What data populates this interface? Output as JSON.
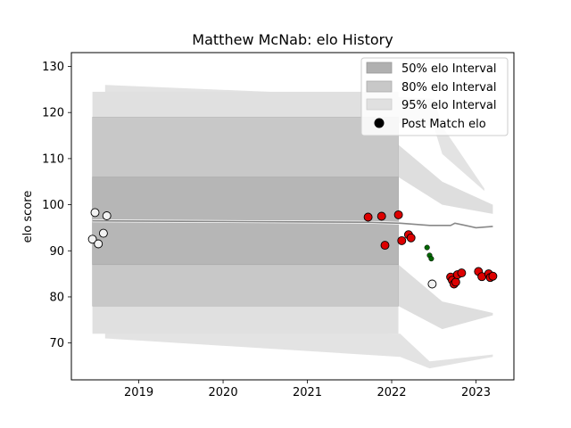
{
  "chart_data": {
    "type": "scatter",
    "title": "Matthew McNab: elo History",
    "xlabel": "",
    "ylabel": "elo score",
    "xlim": [
      2018.2,
      2023.45
    ],
    "ylim": [
      62,
      133
    ],
    "x_ticks": [
      2019,
      2020,
      2021,
      2022,
      2023
    ],
    "y_ticks": [
      70,
      80,
      90,
      100,
      110,
      120,
      130
    ],
    "grid": false,
    "legend_position": "top-right",
    "legend": [
      {
        "label": "50% elo Interval",
        "kind": "band",
        "color": "#b0b0b0"
      },
      {
        "label": "80% elo Interval",
        "kind": "band",
        "color": "#c8c8c8"
      },
      {
        "label": "95% elo Interval",
        "kind": "band",
        "color": "#e0e0e0"
      },
      {
        "label": "Post Match elo",
        "kind": "marker",
        "color": "#000000"
      }
    ],
    "colors": {
      "band50": "#b0b0b0",
      "band80": "#c8c8c8",
      "band95": "#e0e0e0",
      "loss": "#dd0000",
      "neutral": "#f2f2f2",
      "win": "#006600",
      "mean_line": "#888888"
    },
    "bands": {
      "block": {
        "x_range": [
          2018.45,
          2022.08
        ],
        "band50": [
          87,
          106
        ],
        "band80": [
          78,
          119
        ],
        "band95": [
          72,
          124.5
        ]
      },
      "upper_fan": [
        {
          "x": 2018.6,
          "y": 126,
          "y2": 124
        },
        {
          "x": 2022.5,
          "y": 123,
          "y2": 117
        },
        {
          "x": 2022.6,
          "y": 117,
          "y2": 111
        },
        {
          "x": 2023.1,
          "y": 103.5,
          "y2": 103
        }
      ],
      "lower_fan": [
        {
          "x": 2018.6,
          "y": 73,
          "y2": 71
        },
        {
          "x": 2022.1,
          "y": 72,
          "y2": 67
        },
        {
          "x": 2022.45,
          "y": 66,
          "y2": 64.5
        },
        {
          "x": 2023.2,
          "y": 67.5,
          "y2": 67
        }
      ],
      "upper_80_tail": [
        {
          "x": 2022.08,
          "y": 113,
          "y2": 106
        },
        {
          "x": 2022.6,
          "y": 105,
          "y2": 100
        },
        {
          "x": 2023.2,
          "y": 100,
          "y2": 98
        }
      ],
      "lower_80_tail": [
        {
          "x": 2022.08,
          "y": 87,
          "y2": 78
        },
        {
          "x": 2022.6,
          "y": 79,
          "y2": 73
        },
        {
          "x": 2023.2,
          "y": 76.5,
          "y2": 76
        }
      ]
    },
    "mean_line": [
      {
        "x": 2018.45,
        "y": 96.5
      },
      {
        "x": 2021.7,
        "y": 96.2
      },
      {
        "x": 2022.1,
        "y": 96.0
      },
      {
        "x": 2022.45,
        "y": 95.5
      },
      {
        "x": 2022.7,
        "y": 95.5
      },
      {
        "x": 2022.75,
        "y": 96.0
      },
      {
        "x": 2022.85,
        "y": 95.6
      },
      {
        "x": 2023.0,
        "y": 95.0
      },
      {
        "x": 2023.2,
        "y": 95.3
      }
    ],
    "series": [
      {
        "name": "neutral",
        "color": "#f2f2f2",
        "size": 4.5,
        "points": [
          {
            "x": 2018.45,
            "y": 92.5
          },
          {
            "x": 2018.48,
            "y": 98.3
          },
          {
            "x": 2018.52,
            "y": 91.5
          },
          {
            "x": 2018.58,
            "y": 93.8
          },
          {
            "x": 2018.62,
            "y": 97.6
          },
          {
            "x": 2022.48,
            "y": 82.8
          }
        ]
      },
      {
        "name": "loss",
        "color": "#dd0000",
        "size": 4.5,
        "points": [
          {
            "x": 2021.72,
            "y": 97.3
          },
          {
            "x": 2021.88,
            "y": 97.5
          },
          {
            "x": 2021.92,
            "y": 91.2
          },
          {
            "x": 2022.08,
            "y": 97.8
          },
          {
            "x": 2022.12,
            "y": 92.2
          },
          {
            "x": 2022.2,
            "y": 93.5
          },
          {
            "x": 2022.23,
            "y": 92.8
          },
          {
            "x": 2022.7,
            "y": 84.3
          },
          {
            "x": 2022.72,
            "y": 83.6
          },
          {
            "x": 2022.74,
            "y": 82.8
          },
          {
            "x": 2022.76,
            "y": 83.2
          },
          {
            "x": 2022.78,
            "y": 84.8
          },
          {
            "x": 2022.83,
            "y": 85.2
          },
          {
            "x": 2023.03,
            "y": 85.5
          },
          {
            "x": 2023.07,
            "y": 84.4
          },
          {
            "x": 2023.15,
            "y": 85.0
          },
          {
            "x": 2023.17,
            "y": 84.2
          },
          {
            "x": 2023.2,
            "y": 84.5
          }
        ]
      },
      {
        "name": "win",
        "color": "#006600",
        "size": 2.8,
        "points": [
          {
            "x": 2022.42,
            "y": 90.7
          },
          {
            "x": 2022.45,
            "y": 89.0
          },
          {
            "x": 2022.47,
            "y": 88.3
          }
        ]
      }
    ]
  }
}
